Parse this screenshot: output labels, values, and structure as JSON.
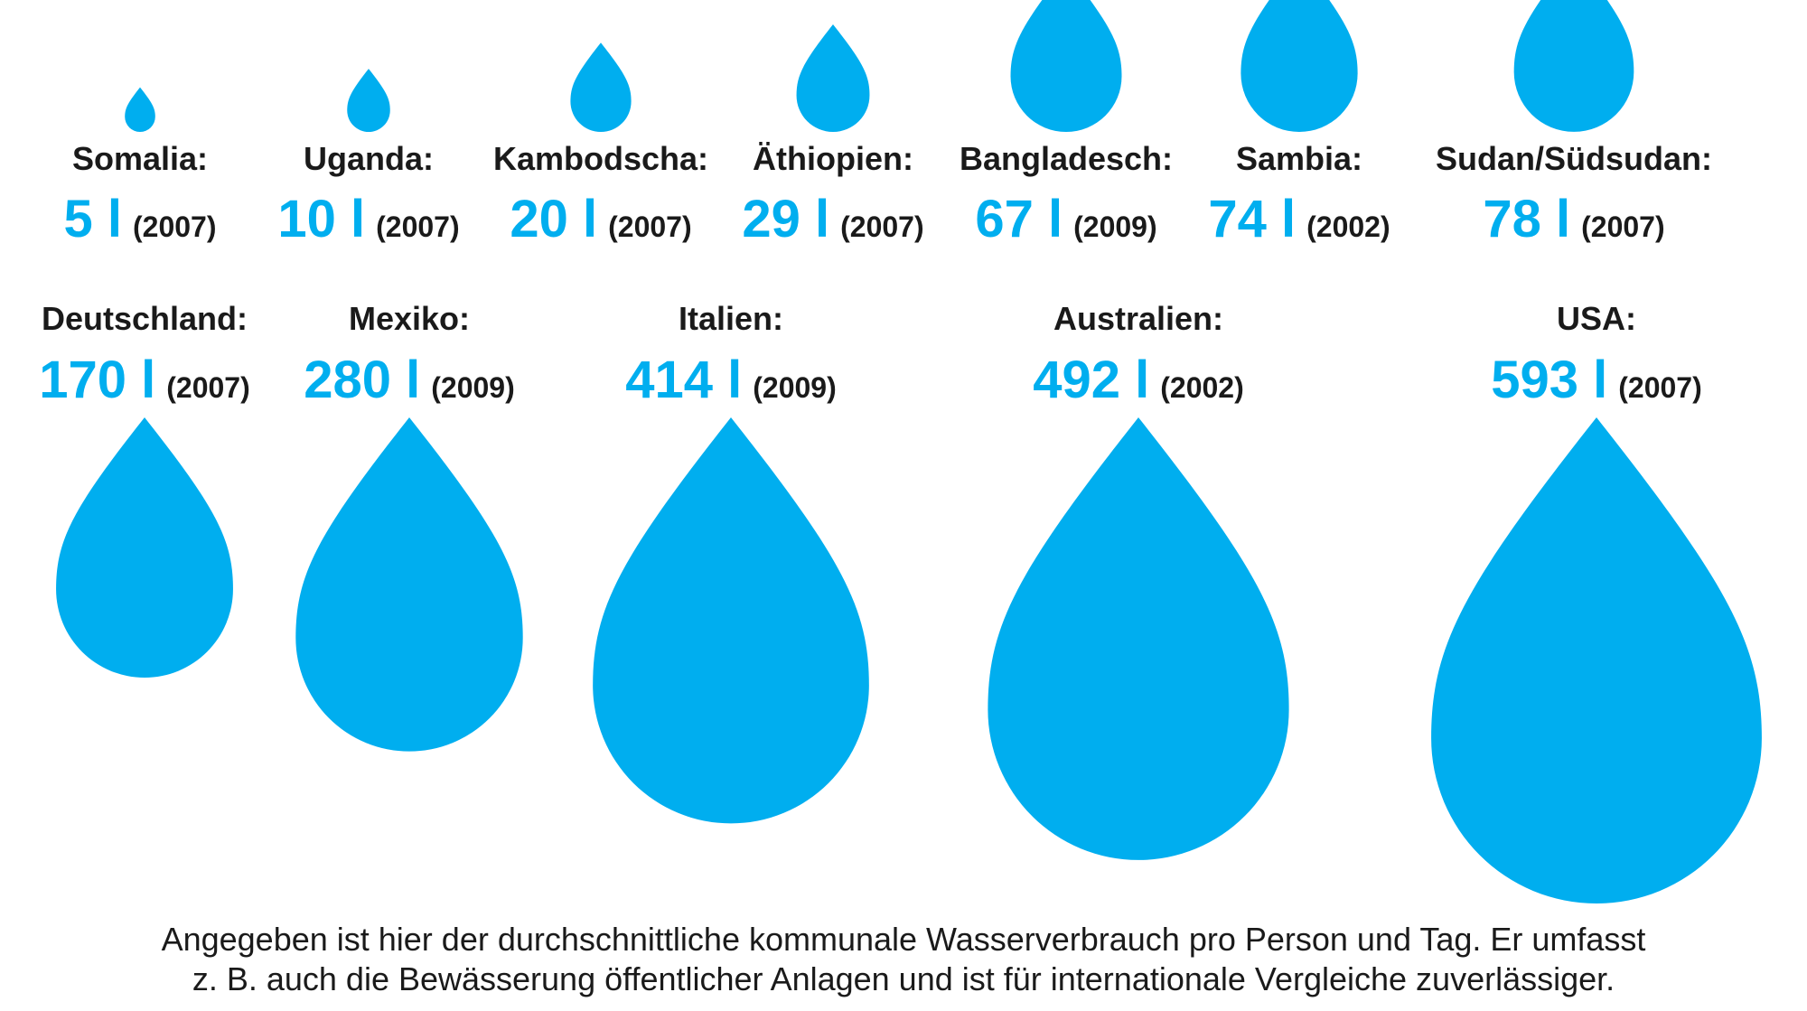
{
  "chart_data": {
    "type": "pictogram",
    "unit": "l",
    "color": "#00aeef",
    "items": [
      {
        "country": "Somalia:",
        "value": 5,
        "value_label": "5 l",
        "year": "(2007)"
      },
      {
        "country": "Uganda:",
        "value": 10,
        "value_label": "10 l",
        "year": "(2007)"
      },
      {
        "country": "Kambodscha:",
        "value": 20,
        "value_label": "20 l",
        "year": "(2007)"
      },
      {
        "country": "Äthiopien:",
        "value": 29,
        "value_label": "29 l",
        "year": "(2007)"
      },
      {
        "country": "Bangladesch:",
        "value": 67,
        "value_label": "67 l",
        "year": "(2009)"
      },
      {
        "country": "Sambia:",
        "value": 74,
        "value_label": "74 l",
        "year": "(2002)"
      },
      {
        "country": "Sudan/Südsudan:",
        "value": 78,
        "value_label": "78 l",
        "year": "(2007)"
      },
      {
        "country": "Deutschland:",
        "value": 170,
        "value_label": "170 l",
        "year": "(2007)"
      },
      {
        "country": "Mexiko:",
        "value": 280,
        "value_label": "280 l",
        "year": "(2009)"
      },
      {
        "country": "Italien:",
        "value": 414,
        "value_label": "414 l",
        "year": "(2009)"
      },
      {
        "country": "Australien:",
        "value": 492,
        "value_label": "492 l",
        "year": "(2002)"
      },
      {
        "country": "USA:",
        "value": 593,
        "value_label": "593 l",
        "year": "(2007)"
      }
    ]
  },
  "note": {
    "line1": "Angegeben ist hier der durchschnittliche kommunale Wasserverbrauch pro Person und Tag. Er umfasst",
    "line2": "z. B. auch die Bewässerung öffentlicher Anlagen und ist für internationale Vergleiche zuverlässiger."
  }
}
